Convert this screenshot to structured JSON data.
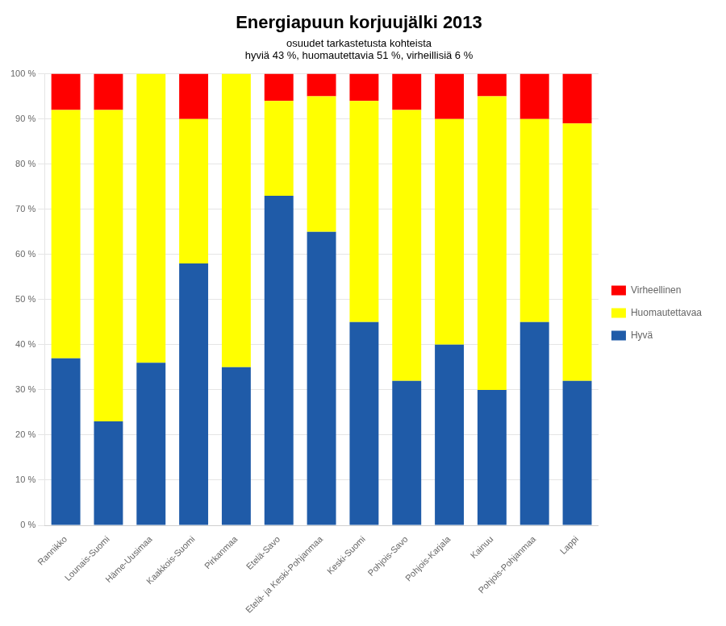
{
  "chart_data": {
    "type": "bar",
    "title": "Energiapuun korjuujälki 2013",
    "subtitle": [
      "osuudet tarkastetusta kohteista",
      "hyviä 43 %, huomautettavia 51 %, virheillisiä 6 %"
    ],
    "categories": [
      "Rannikko",
      "Lounais-Suomi",
      "Häme-Uusimaa",
      "Kaakkois-Suomi",
      "Pirkanmaa",
      "Etelä-Savo",
      "Etelä- ja Keski-Pohjanmaa",
      "Keski-Suomi",
      "Pohjois-Savo",
      "Pohjois-Karjala",
      "Kainuu",
      "Pohjois-Pohjanmaa",
      "Lappi"
    ],
    "series": [
      {
        "name": "Hyvä",
        "color": "#1F5BA8",
        "values": [
          37,
          23,
          36,
          58,
          35,
          73,
          65,
          45,
          32,
          40,
          30,
          45,
          32
        ]
      },
      {
        "name": "Huomautettavaa",
        "color": "#FFFF00",
        "values": [
          55,
          69,
          64,
          32,
          65,
          21,
          30,
          49,
          60,
          50,
          65,
          45,
          57
        ]
      },
      {
        "name": "Virheellinen",
        "color": "#FF0000",
        "values": [
          8,
          8,
          0,
          10,
          0,
          6,
          5,
          6,
          8,
          10,
          5,
          10,
          11
        ]
      }
    ],
    "stacked": true,
    "ylim": [
      0,
      100
    ],
    "yticks": [
      {
        "value": 0,
        "label": "0 %"
      },
      {
        "value": 10,
        "label": "10 %"
      },
      {
        "value": 20,
        "label": "20 %"
      },
      {
        "value": 30,
        "label": "30 %"
      },
      {
        "value": 40,
        "label": "40 %"
      },
      {
        "value": 50,
        "label": "50 %"
      },
      {
        "value": 60,
        "label": "60 %"
      },
      {
        "value": 70,
        "label": "70 %"
      },
      {
        "value": 80,
        "label": "80 %"
      },
      {
        "value": 90,
        "label": "90 %"
      },
      {
        "value": 100,
        "label": "100 %"
      }
    ],
    "grid": true,
    "legend": "right"
  }
}
